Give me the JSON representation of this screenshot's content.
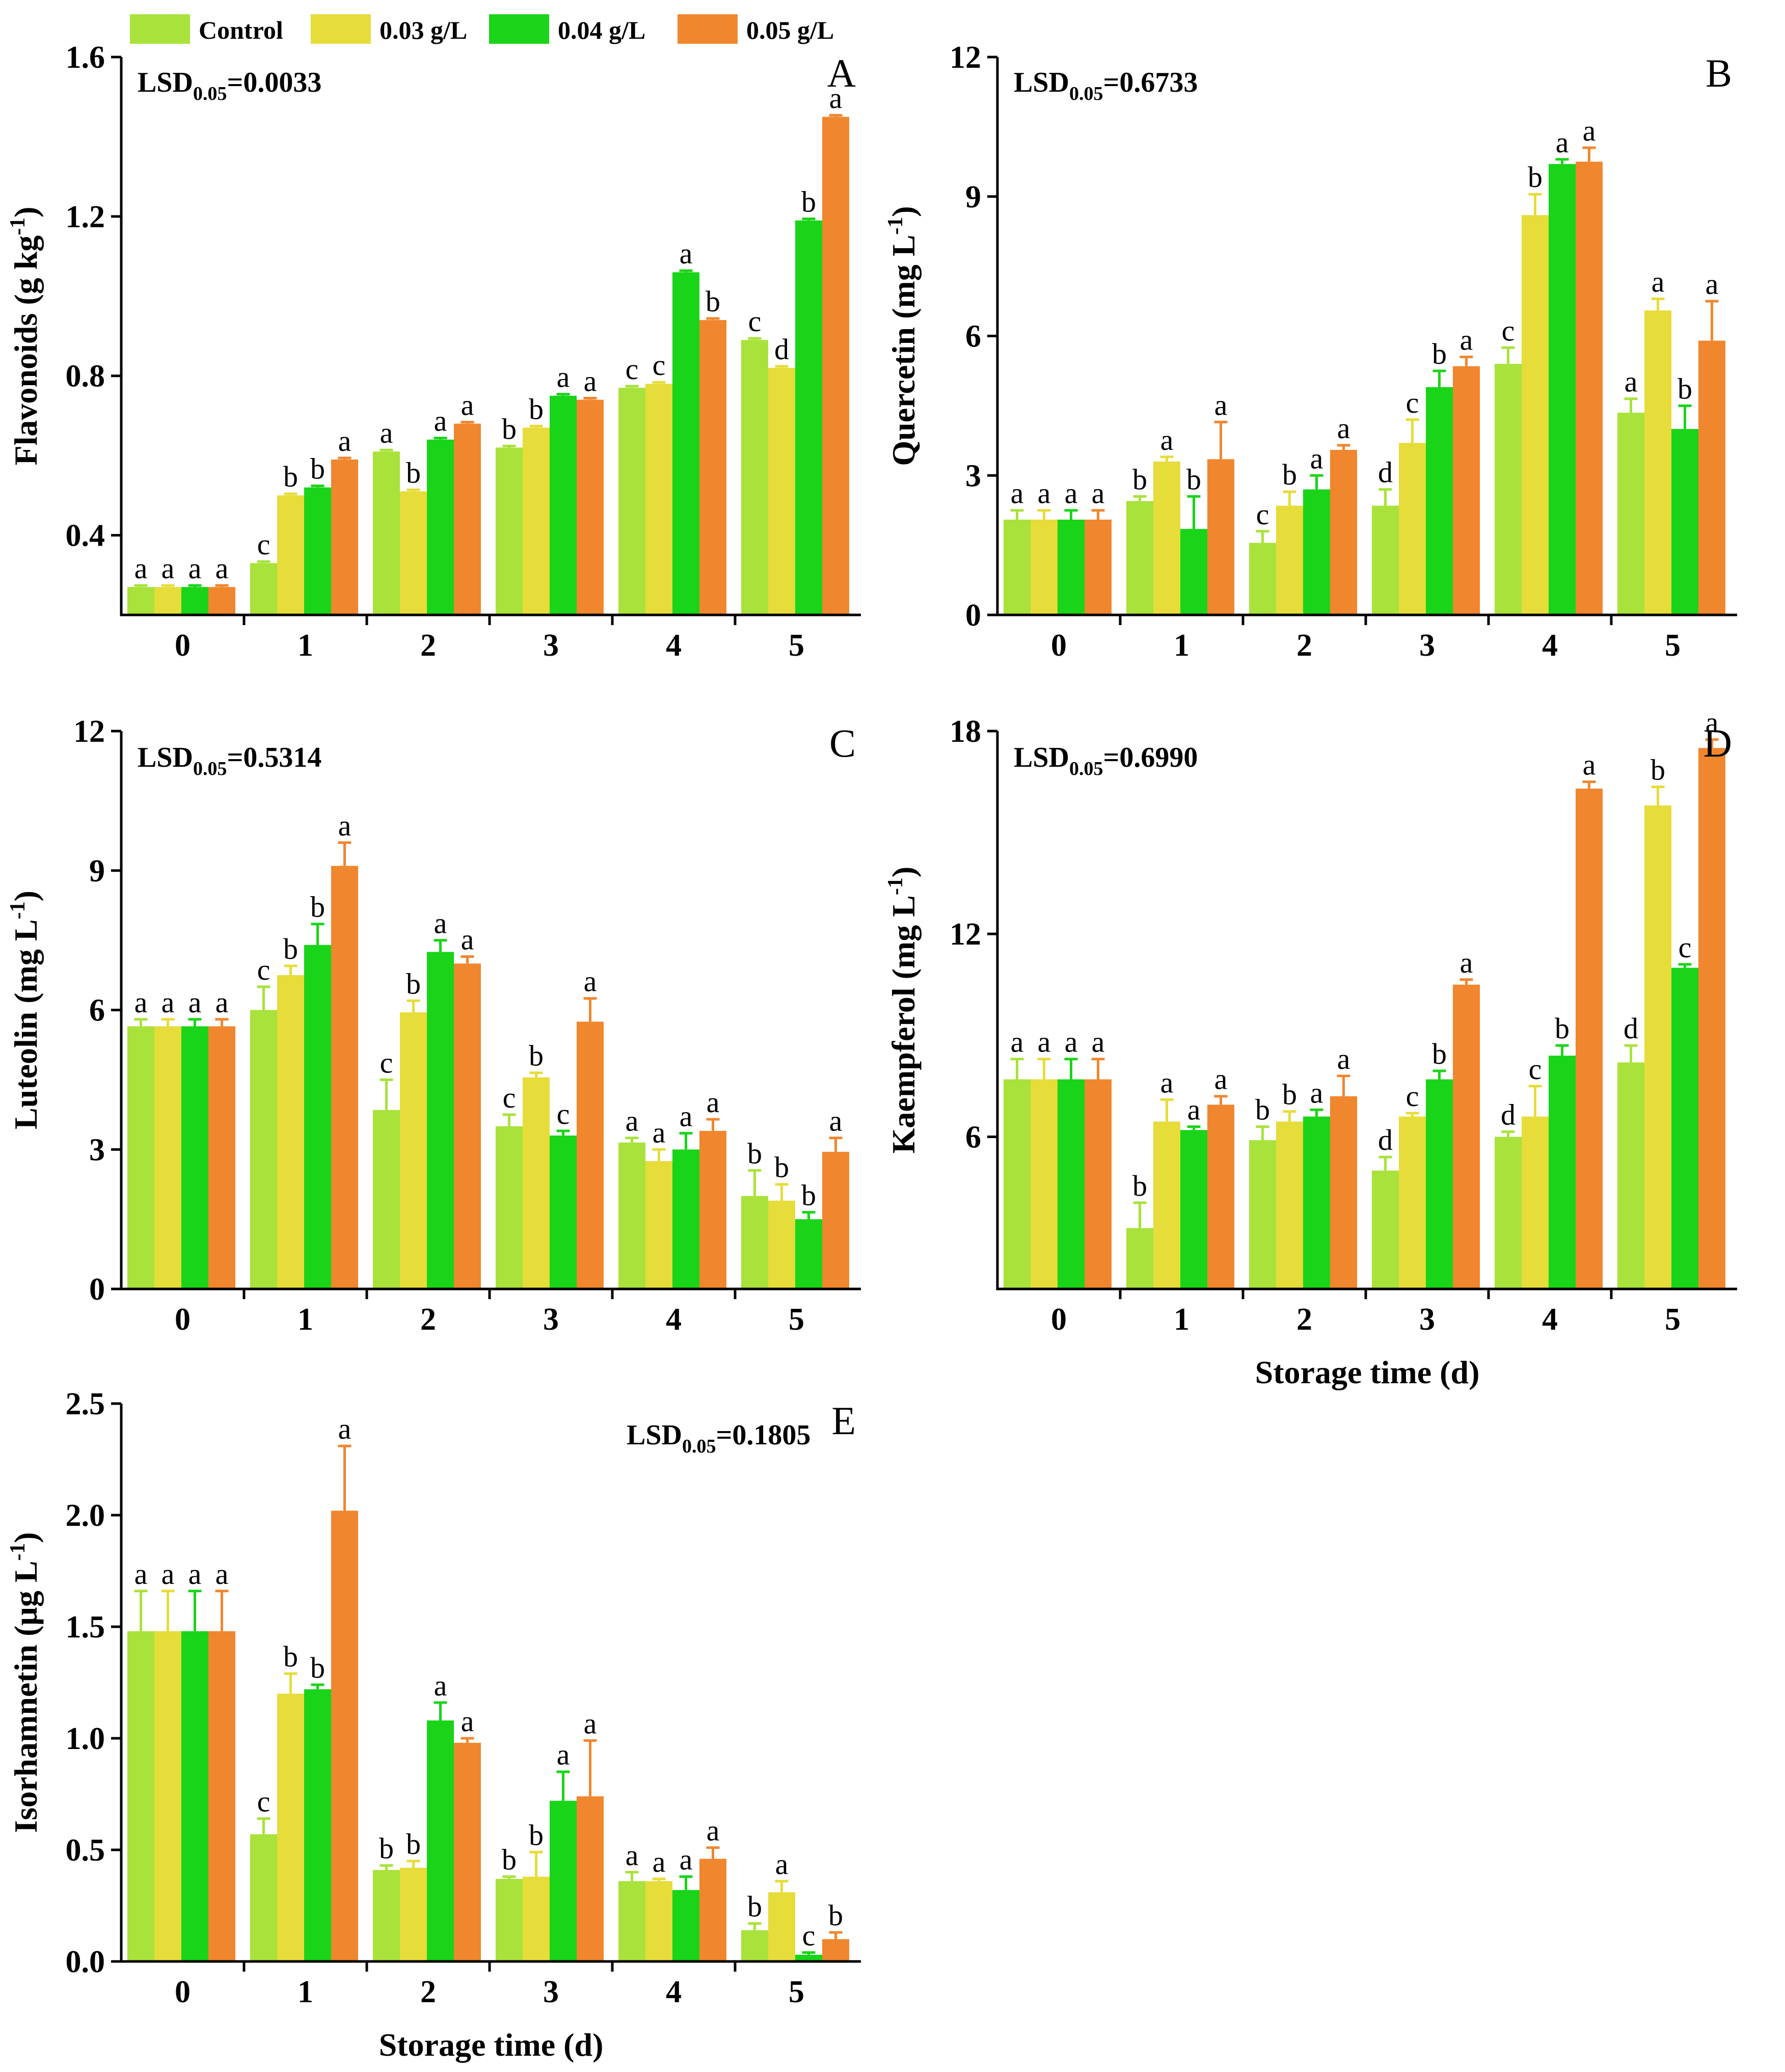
{
  "legend": [
    {
      "name": "Control",
      "color": "#a8e23b"
    },
    {
      "name": "0.03 g/L",
      "color": "#e6dc3a"
    },
    {
      "name": "0.04 g/L",
      "color": "#19d419"
    },
    {
      "name": "0.05 g/L",
      "color": "#f0862e"
    }
  ],
  "chart_data": [
    {
      "type": "bar",
      "panel": "A",
      "ylabel_main": "Flavonoids (g kg",
      "ylabel_sup": "-1",
      "ylabel_end": ")",
      "xlabel": "",
      "lsd_prefix": "LSD",
      "lsd_sub": "0.05",
      "lsd_value": "=0.0033",
      "ylim": [
        0.2,
        1.6
      ],
      "yticks": [
        0.4,
        0.8,
        1.2,
        1.6
      ],
      "ytick_labels": [
        "0.4",
        "0.8",
        "1.2",
        "1.6"
      ],
      "categories": [
        "0",
        "1",
        "2",
        "3",
        "4",
        "5"
      ],
      "series": [
        {
          "name": "Control",
          "values": [
            0.27,
            0.33,
            0.61,
            0.62,
            0.77,
            0.89
          ],
          "errors": [
            0.004,
            0.004,
            0.004,
            0.004,
            0.004,
            0.004
          ],
          "letters": [
            "a",
            "c",
            "a",
            "b",
            "c",
            "c"
          ]
        },
        {
          "name": "0.03 g/L",
          "values": [
            0.27,
            0.5,
            0.51,
            0.67,
            0.78,
            0.82
          ],
          "errors": [
            0.004,
            0.004,
            0.004,
            0.004,
            0.004,
            0.004
          ],
          "letters": [
            "a",
            "b",
            "b",
            "b",
            "c",
            "d"
          ]
        },
        {
          "name": "0.04 g/L",
          "values": [
            0.27,
            0.52,
            0.64,
            0.75,
            1.06,
            1.19
          ],
          "errors": [
            0.004,
            0.004,
            0.004,
            0.004,
            0.004,
            0.004
          ],
          "letters": [
            "a",
            "b",
            "a",
            "a",
            "a",
            "b"
          ]
        },
        {
          "name": "0.05 g/L",
          "values": [
            0.27,
            0.59,
            0.68,
            0.74,
            0.94,
            1.45
          ],
          "errors": [
            0.004,
            0.004,
            0.004,
            0.004,
            0.004,
            0.004
          ],
          "letters": [
            "a",
            "a",
            "a",
            "a",
            "b",
            "a"
          ]
        }
      ]
    },
    {
      "type": "bar",
      "panel": "B",
      "ylabel_main": "Quercetin (mg L",
      "ylabel_sup": "-1",
      "ylabel_end": ")",
      "xlabel": "",
      "lsd_prefix": "LSD",
      "lsd_sub": "0.05",
      "lsd_value": "=0.6733",
      "ylim": [
        0,
        12
      ],
      "yticks": [
        0,
        3,
        6,
        9,
        12
      ],
      "ytick_labels": [
        "0",
        "3",
        "6",
        "9",
        "12"
      ],
      "categories": [
        "0",
        "1",
        "2",
        "3",
        "4",
        "5"
      ],
      "series": [
        {
          "name": "Control",
          "values": [
            2.05,
            2.45,
            1.55,
            2.35,
            5.4,
            4.35
          ],
          "errors": [
            0.2,
            0.1,
            0.25,
            0.35,
            0.35,
            0.3
          ],
          "letters": [
            "a",
            "b",
            "c",
            "d",
            "c",
            "a"
          ]
        },
        {
          "name": "0.03 g/L",
          "values": [
            2.05,
            3.3,
            2.35,
            3.7,
            8.6,
            6.55
          ],
          "errors": [
            0.2,
            0.1,
            0.3,
            0.5,
            0.45,
            0.25
          ],
          "letters": [
            "a",
            "a",
            "b",
            "c",
            "b",
            "a"
          ]
        },
        {
          "name": "0.04 g/L",
          "values": [
            2.05,
            1.85,
            2.7,
            4.9,
            9.7,
            4.0
          ],
          "errors": [
            0.2,
            0.7,
            0.3,
            0.35,
            0.1,
            0.5
          ],
          "letters": [
            "a",
            "b",
            "a",
            "b",
            "a",
            "b"
          ]
        },
        {
          "name": "0.05 g/L",
          "values": [
            2.05,
            3.35,
            3.55,
            5.35,
            9.75,
            5.9
          ],
          "errors": [
            0.2,
            0.8,
            0.1,
            0.2,
            0.3,
            0.85
          ],
          "letters": [
            "a",
            "a",
            "a",
            "a",
            "a",
            "a"
          ]
        }
      ]
    },
    {
      "type": "bar",
      "panel": "C",
      "ylabel_main": "Luteolin (mg L",
      "ylabel_sup": "-1",
      "ylabel_end": ")",
      "xlabel": "",
      "lsd_prefix": "LSD",
      "lsd_sub": "0.05",
      "lsd_value": "=0.5314",
      "ylim": [
        0,
        12
      ],
      "yticks": [
        0,
        3,
        6,
        9,
        12
      ],
      "ytick_labels": [
        "0",
        "3",
        "6",
        "9",
        "12"
      ],
      "categories": [
        "0",
        "1",
        "2",
        "3",
        "4",
        "5"
      ],
      "series": [
        {
          "name": "Control",
          "values": [
            5.65,
            6.0,
            3.85,
            3.5,
            3.15,
            2.0
          ],
          "errors": [
            0.15,
            0.5,
            0.65,
            0.25,
            0.1,
            0.55
          ],
          "letters": [
            "a",
            "c",
            "c",
            "c",
            "a",
            "b"
          ]
        },
        {
          "name": "0.03 g/L",
          "values": [
            5.65,
            6.75,
            5.95,
            4.55,
            2.75,
            1.9
          ],
          "errors": [
            0.15,
            0.2,
            0.25,
            0.1,
            0.25,
            0.35
          ],
          "letters": [
            "a",
            "b",
            "b",
            "b",
            "a",
            "b"
          ]
        },
        {
          "name": "0.04 g/L",
          "values": [
            5.65,
            7.4,
            7.25,
            3.3,
            3.0,
            1.5
          ],
          "errors": [
            0.15,
            0.45,
            0.25,
            0.1,
            0.35,
            0.15
          ],
          "letters": [
            "a",
            "b",
            "a",
            "c",
            "a",
            "b"
          ]
        },
        {
          "name": "0.05 g/L",
          "values": [
            5.65,
            9.1,
            7.0,
            5.75,
            3.4,
            2.95
          ],
          "errors": [
            0.15,
            0.5,
            0.15,
            0.5,
            0.25,
            0.3
          ],
          "letters": [
            "a",
            "a",
            "a",
            "a",
            "a",
            "a"
          ]
        }
      ]
    },
    {
      "type": "bar",
      "panel": "D",
      "ylabel_main": "Kaempferol (mg L",
      "ylabel_sup": "-1",
      "ylabel_end": ")",
      "xlabel": "Storage time (d)",
      "lsd_prefix": "LSD",
      "lsd_sub": "0.05",
      "lsd_value": "=0.6990",
      "ylim": [
        1.5,
        18
      ],
      "yticks": [
        6,
        12,
        18
      ],
      "ytick_labels": [
        "6",
        "12",
        "18"
      ],
      "categories": [
        "0",
        "1",
        "2",
        "3",
        "4",
        "5"
      ],
      "series": [
        {
          "name": "Control",
          "values": [
            7.7,
            3.3,
            5.9,
            5.0,
            6.0,
            8.2
          ],
          "errors": [
            0.6,
            0.75,
            0.4,
            0.4,
            0.15,
            0.5
          ],
          "letters": [
            "a",
            "b",
            "b",
            "d",
            "d",
            "d"
          ]
        },
        {
          "name": "0.03 g/L",
          "values": [
            7.7,
            6.45,
            6.45,
            6.6,
            6.6,
            15.8
          ],
          "errors": [
            0.6,
            0.65,
            0.3,
            0.1,
            0.9,
            0.55
          ],
          "letters": [
            "a",
            "a",
            "b",
            "c",
            "c",
            "b"
          ]
        },
        {
          "name": "0.04 g/L",
          "values": [
            7.7,
            6.2,
            6.6,
            7.7,
            8.4,
            11.0
          ],
          "errors": [
            0.6,
            0.1,
            0.2,
            0.25,
            0.3,
            0.1
          ],
          "letters": [
            "a",
            "a",
            "a",
            "b",
            "b",
            "c"
          ]
        },
        {
          "name": "0.05 g/L",
          "values": [
            7.7,
            6.95,
            7.2,
            10.5,
            16.3,
            17.5
          ],
          "errors": [
            0.6,
            0.25,
            0.6,
            0.15,
            0.2,
            0.25
          ],
          "letters": [
            "a",
            "a",
            "a",
            "a",
            "a",
            "a"
          ]
        }
      ]
    },
    {
      "type": "bar",
      "panel": "E",
      "ylabel_main": "Isorhamnetin (μg L",
      "ylabel_sup": "-1",
      "ylabel_end": ")",
      "xlabel": "Storage time (d)",
      "lsd_prefix": "LSD",
      "lsd_sub": "0.05",
      "lsd_value": "=0.1805",
      "ylim": [
        0,
        2.5
      ],
      "yticks": [
        0.0,
        0.5,
        1.0,
        1.5,
        2.0,
        2.5
      ],
      "ytick_labels": [
        "0.0",
        "0.5",
        "1.0",
        "1.5",
        "2.0",
        "2.5"
      ],
      "categories": [
        "0",
        "1",
        "2",
        "3",
        "4",
        "5"
      ],
      "series": [
        {
          "name": "Control",
          "values": [
            1.48,
            0.57,
            0.41,
            0.37,
            0.36,
            0.14
          ],
          "errors": [
            0.18,
            0.07,
            0.02,
            0.01,
            0.04,
            0.03
          ],
          "letters": [
            "a",
            "c",
            "b",
            "b",
            "a",
            "b"
          ]
        },
        {
          "name": "0.03 g/L",
          "values": [
            1.48,
            1.2,
            0.42,
            0.38,
            0.36,
            0.31
          ],
          "errors": [
            0.18,
            0.09,
            0.03,
            0.11,
            0.01,
            0.05
          ],
          "letters": [
            "a",
            "b",
            "b",
            "b",
            "a",
            "a"
          ]
        },
        {
          "name": "0.04 g/L",
          "values": [
            1.48,
            1.22,
            1.08,
            0.72,
            0.32,
            0.03
          ],
          "errors": [
            0.18,
            0.02,
            0.08,
            0.13,
            0.06,
            0.01
          ],
          "letters": [
            "a",
            "b",
            "a",
            "a",
            "a",
            "c"
          ]
        },
        {
          "name": "0.05 g/L",
          "values": [
            1.48,
            2.02,
            0.98,
            0.74,
            0.46,
            0.1
          ],
          "errors": [
            0.18,
            0.29,
            0.02,
            0.25,
            0.05,
            0.03
          ],
          "letters": [
            "a",
            "a",
            "a",
            "a",
            "a",
            "b"
          ]
        }
      ]
    }
  ]
}
